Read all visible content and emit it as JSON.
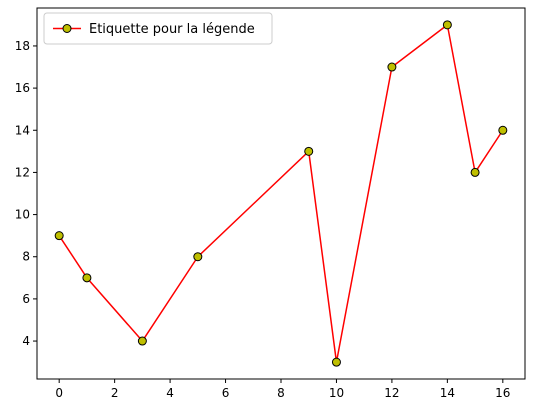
{
  "chart_data": {
    "type": "line",
    "title": "",
    "xlabel": "",
    "ylabel": "",
    "xlim": [
      -0.8,
      16.8
    ],
    "ylim": [
      2.2,
      19.8
    ],
    "xticks": [
      0,
      2,
      4,
      6,
      8,
      10,
      12,
      14,
      16
    ],
    "yticks": [
      4,
      6,
      8,
      10,
      12,
      14,
      16,
      18
    ],
    "grid": false,
    "legend_position": "top-left",
    "series": [
      {
        "name": "Etiquette pour la légende",
        "line_color": "#ff0000",
        "marker": "circle",
        "marker_face_color": "#bfbf00",
        "marker_edge_color": "#000000",
        "x": [
          0,
          1,
          3,
          5,
          9,
          10,
          12,
          14,
          15,
          16
        ],
        "y": [
          9,
          7,
          4,
          8,
          13,
          3,
          17,
          19,
          12,
          14
        ]
      }
    ]
  }
}
